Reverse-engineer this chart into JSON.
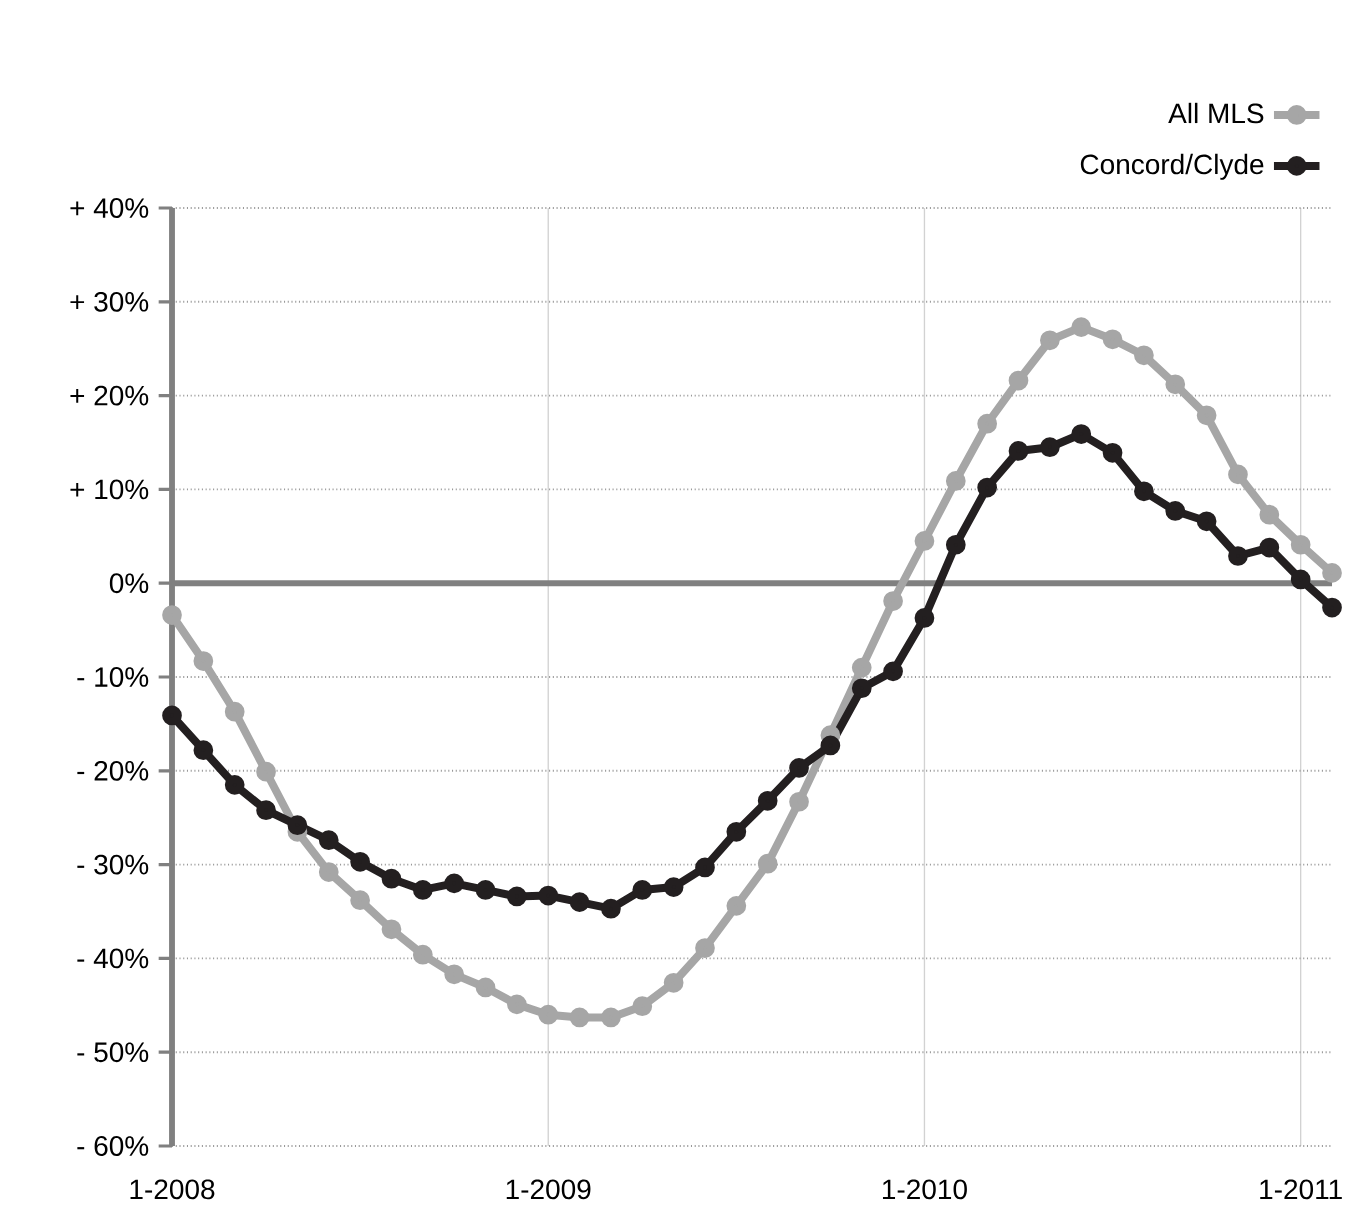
{
  "chart_data": {
    "type": "line",
    "x": [
      "2008-01",
      "2008-02",
      "2008-03",
      "2008-04",
      "2008-05",
      "2008-06",
      "2008-07",
      "2008-08",
      "2008-09",
      "2008-10",
      "2008-11",
      "2008-12",
      "2009-01",
      "2009-02",
      "2009-03",
      "2009-04",
      "2009-05",
      "2009-06",
      "2009-07",
      "2009-08",
      "2009-09",
      "2009-10",
      "2009-11",
      "2009-12",
      "2010-01",
      "2010-02",
      "2010-03",
      "2010-04",
      "2010-05",
      "2010-06",
      "2010-07",
      "2010-08",
      "2010-09",
      "2010-10",
      "2010-11",
      "2010-12",
      "2011-01",
      "2011-02"
    ],
    "series": [
      {
        "name": "All MLS",
        "color": "#a6a6a6",
        "values": [
          -3.4,
          -8.3,
          -13.7,
          -20.1,
          -26.5,
          -30.8,
          -33.8,
          -36.9,
          -39.6,
          -41.7,
          -43.1,
          -44.9,
          -46.0,
          -46.3,
          -46.3,
          -45.1,
          -42.6,
          -38.9,
          -34.4,
          -29.9,
          -23.3,
          -16.2,
          -9.0,
          -1.9,
          4.5,
          10.9,
          17.0,
          21.6,
          25.9,
          27.3,
          26.0,
          24.3,
          21.2,
          17.9,
          11.6,
          7.3,
          4.1,
          1.1
        ]
      },
      {
        "name": "Concord/Clyde",
        "color": "#231f20",
        "values": [
          -14.1,
          -17.8,
          -21.5,
          -24.2,
          -25.8,
          -27.4,
          -29.7,
          -31.5,
          -32.7,
          -32.0,
          -32.7,
          -33.4,
          -33.3,
          -34.0,
          -34.7,
          -32.7,
          -32.4,
          -30.3,
          -26.5,
          -23.2,
          -19.7,
          -17.3,
          -11.2,
          -9.4,
          -3.7,
          4.1,
          10.2,
          14.1,
          14.5,
          15.9,
          13.9,
          9.8,
          7.7,
          6.6,
          2.9,
          3.8,
          0.4,
          -2.6
        ]
      }
    ],
    "xlim": [
      "2008-01",
      "2011-02"
    ],
    "xticks": [
      {
        "value": "2008-01",
        "label": "1-2008"
      },
      {
        "value": "2009-01",
        "label": "1-2009"
      },
      {
        "value": "2010-01",
        "label": "1-2010"
      },
      {
        "value": "2011-01",
        "label": "1-2011"
      }
    ],
    "ylim": [
      -60,
      40
    ],
    "yticks": [
      {
        "value": 40,
        "label": "+ 40%"
      },
      {
        "value": 30,
        "label": "+ 30%"
      },
      {
        "value": 20,
        "label": "+ 20%"
      },
      {
        "value": 10,
        "label": "+ 10%"
      },
      {
        "value": 0,
        "label": "0%"
      },
      {
        "value": -10,
        "label": "- 10%"
      },
      {
        "value": -20,
        "label": "- 20%"
      },
      {
        "value": -30,
        "label": "- 30%"
      },
      {
        "value": -40,
        "label": "- 40%"
      },
      {
        "value": -50,
        "label": "- 50%"
      },
      {
        "value": -60,
        "label": "- 60%"
      }
    ],
    "ref_lines": [
      {
        "axis": "y",
        "value": 0,
        "color": "#808080"
      }
    ],
    "grid": true,
    "legend": "top right",
    "marker": "circle",
    "line_style": "solid"
  }
}
